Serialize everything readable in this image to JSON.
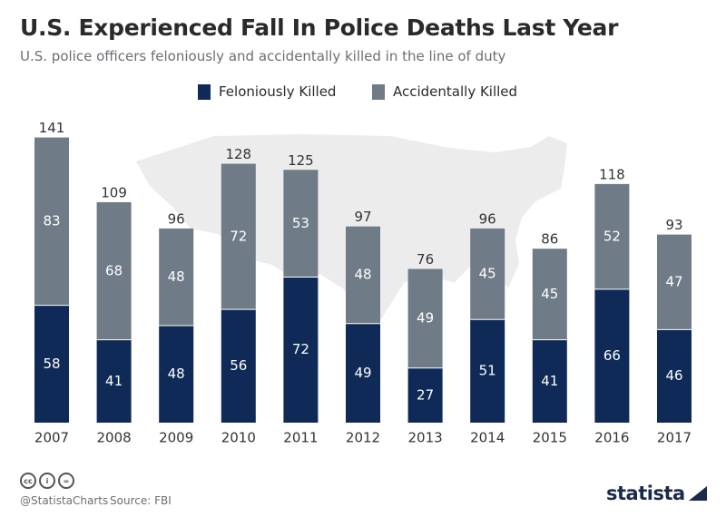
{
  "header": {
    "title": "U.S. Experienced Fall In Police Deaths Last Year",
    "subtitle": "U.S. police officers feloniously and accidentally killed in the line of duty"
  },
  "colors": {
    "feloniously": "#0f2a56",
    "accidentally": "#6f7b86",
    "map": "#ececec",
    "label_light": "#ffffff",
    "label_dark": "#333333"
  },
  "chart_data": {
    "type": "bar",
    "stacked": true,
    "categories": [
      "2007",
      "2008",
      "2009",
      "2010",
      "2011",
      "2012",
      "2013",
      "2014",
      "2015",
      "2016",
      "2017"
    ],
    "series": [
      {
        "name": "Feloniously Killed",
        "values": [
          58,
          41,
          48,
          56,
          72,
          49,
          27,
          51,
          41,
          66,
          46
        ]
      },
      {
        "name": "Accidentally Killed",
        "values": [
          83,
          68,
          48,
          72,
          53,
          48,
          49,
          45,
          45,
          52,
          47
        ]
      }
    ],
    "totals": [
      141,
      109,
      96,
      128,
      125,
      97,
      76,
      96,
      86,
      118,
      93
    ],
    "legend_position": "top-center",
    "grid": false
  },
  "footer": {
    "icons": [
      "cc-icon",
      "person-icon",
      "equals-icon"
    ],
    "handle": "@StatistaCharts",
    "source": "Source: FBI",
    "brand": "statista"
  }
}
